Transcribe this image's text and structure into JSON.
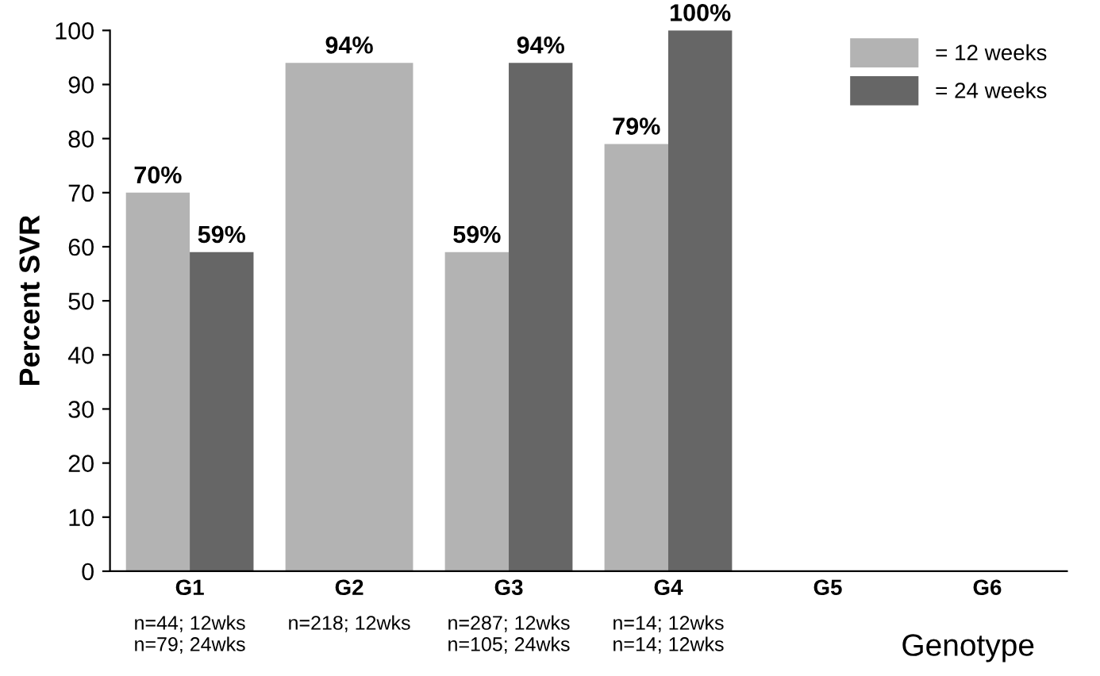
{
  "chart_data": {
    "type": "bar",
    "categories": [
      "G1",
      "G2",
      "G3",
      "G4",
      "G5",
      "G6"
    ],
    "series": [
      {
        "name": "= 12 weeks",
        "color": "#b3b3b3",
        "values": [
          70,
          94,
          59,
          79,
          null,
          null
        ],
        "value_labels": [
          "70%",
          "94%",
          "59%",
          "79%",
          null,
          null
        ]
      },
      {
        "name": "= 24 weeks",
        "color": "#666666",
        "values": [
          59,
          null,
          94,
          100,
          null,
          null
        ],
        "value_labels": [
          "59%",
          null,
          "94%",
          "100%",
          null,
          null
        ]
      }
    ],
    "ylabel": "Percent SVR",
    "xlabel": "Genotype",
    "ylim": [
      0,
      100
    ],
    "yticks": [
      0,
      10,
      20,
      30,
      40,
      50,
      60,
      70,
      80,
      90,
      100
    ],
    "annotations": [
      "n=44; 12wks\nn=79; 24wks",
      "n=218; 12wks",
      "n=287; 12wks\nn=105; 24wks",
      "n=14; 12wks\nn=14; 12wks"
    ],
    "grid": false,
    "legend": "top right"
  }
}
